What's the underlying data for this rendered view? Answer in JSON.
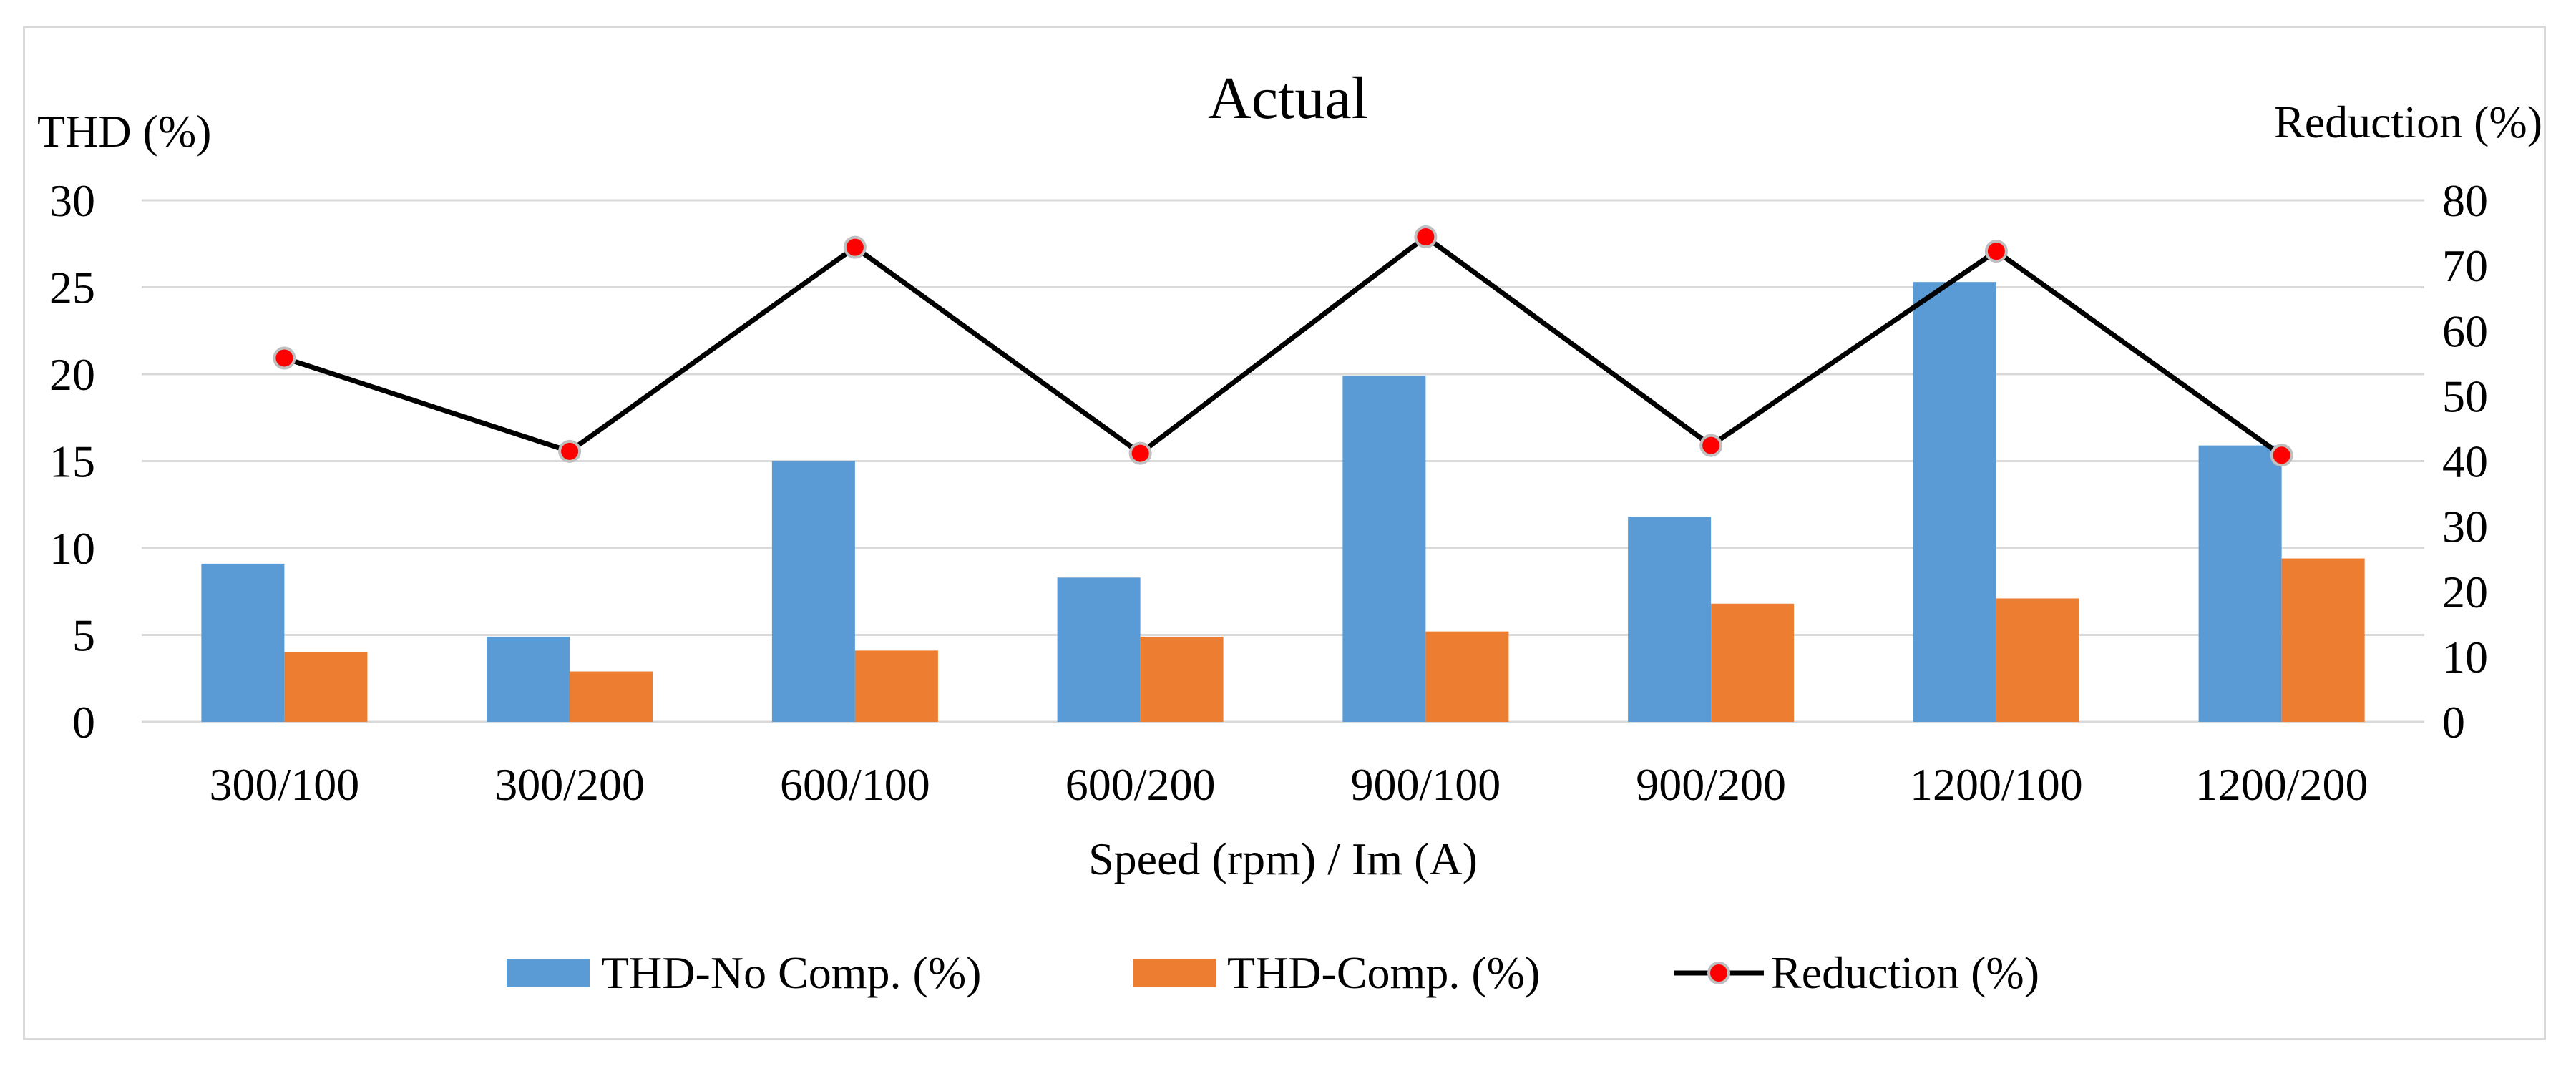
{
  "chart_data": {
    "type": "bar",
    "title": "Actual",
    "xlabel": "Speed (rpm) / Im (A)",
    "ylabel": "THD (%)",
    "y2label": "Reduction (%)",
    "ylim": [
      0,
      30
    ],
    "y2lim": [
      0,
      80
    ],
    "yticks": [
      "0",
      "5",
      "10",
      "15",
      "20",
      "25",
      "30"
    ],
    "y2ticks": [
      "0",
      "10",
      "20",
      "30",
      "40",
      "50",
      "60",
      "70",
      "80"
    ],
    "grid": true,
    "legend_position": "bottom",
    "categories": [
      "300/100",
      "300/200",
      "600/100",
      "600/200",
      "900/100",
      "900/200",
      "1200/100",
      "1200/200"
    ],
    "series": [
      {
        "name": "THD-No Comp. (%)",
        "type": "bar",
        "axis": "left",
        "color": "#5b9bd5",
        "values": [
          9.1,
          4.9,
          15.0,
          8.3,
          19.9,
          11.8,
          25.3,
          15.9
        ]
      },
      {
        "name": "THD-Comp. (%)",
        "type": "bar",
        "axis": "left",
        "color": "#ed7d31",
        "values": [
          4.0,
          2.9,
          4.1,
          4.9,
          5.2,
          6.8,
          7.1,
          9.4
        ]
      },
      {
        "name": "Reduction (%)",
        "type": "line",
        "axis": "right",
        "color": "#000000",
        "marker_color": "#ff0000",
        "values": [
          55.8,
          41.5,
          72.8,
          41.2,
          74.4,
          42.4,
          72.2,
          40.9
        ]
      }
    ]
  }
}
